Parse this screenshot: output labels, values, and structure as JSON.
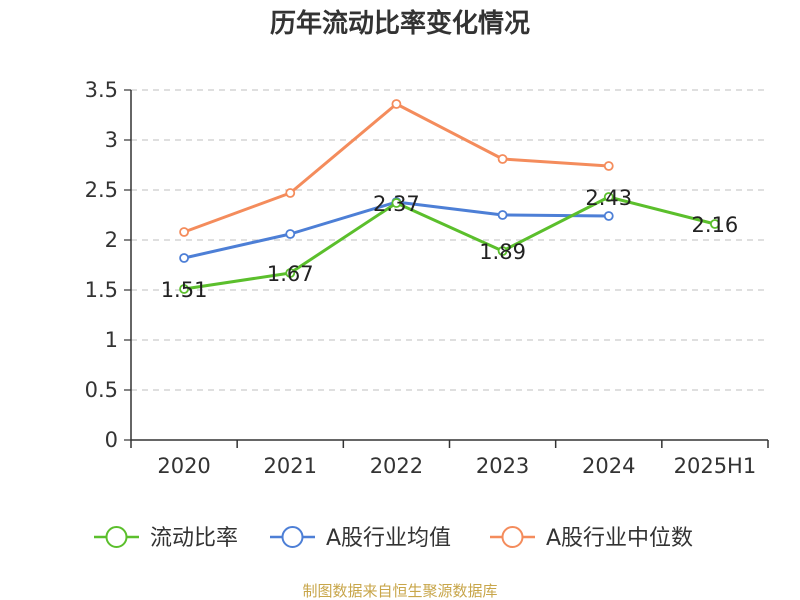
{
  "chart_data": {
    "type": "line",
    "title": "历年流动比率变化情况",
    "categories": [
      "2020",
      "2021",
      "2022",
      "2023",
      "2024",
      "2025H1"
    ],
    "ylim": [
      0,
      3.5
    ],
    "yticks": [
      "0",
      "0.5",
      "1",
      "1.5",
      "2",
      "2.5",
      "3",
      "3.5"
    ],
    "grid": true,
    "legend_position": "bottom",
    "series": [
      {
        "name": "流动比率",
        "color": "#5bbf2c",
        "values": [
          1.51,
          1.67,
          2.37,
          1.89,
          2.43,
          2.16
        ],
        "labels": [
          "1.51",
          "1.67",
          "2.37",
          "1.89",
          "2.43",
          "2.16"
        ]
      },
      {
        "name": "A股行业均值",
        "color": "#4d7fd6",
        "values": [
          1.82,
          2.06,
          2.38,
          2.25,
          2.24,
          null
        ]
      },
      {
        "name": "A股行业中位数",
        "color": "#f48c5c",
        "values": [
          2.08,
          2.47,
          3.36,
          2.81,
          2.74,
          null
        ]
      }
    ],
    "source": "制图数据来自恒生聚源数据库"
  }
}
